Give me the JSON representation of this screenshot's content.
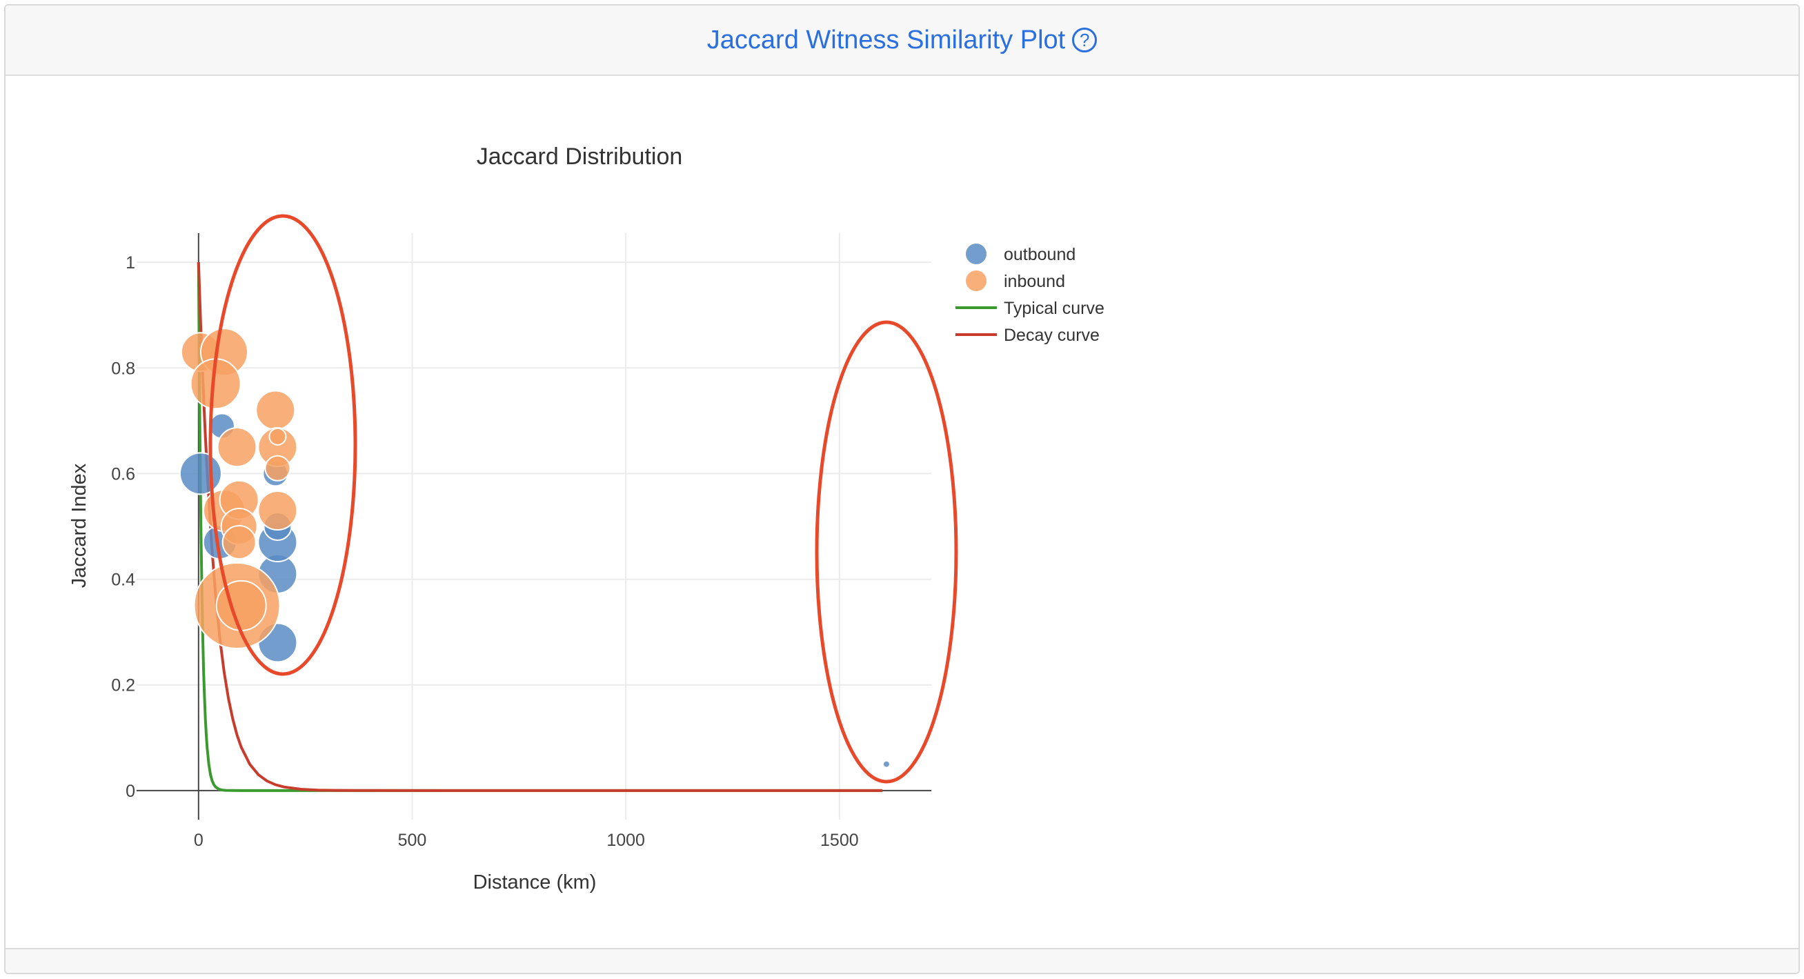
{
  "card": {
    "title": "Jaccard Witness Similarity Plot",
    "help_icon": "question-circle-icon",
    "accent_color": "#2a6fe0"
  },
  "chart_data": {
    "type": "scatter",
    "title": "Jaccard Distribution",
    "xlabel": "Distance (km)",
    "ylabel": "Jaccard Index",
    "xlim": [
      -145,
      1715
    ],
    "ylim": [
      -0.055,
      1.055
    ],
    "x_ticks": [
      0,
      500,
      1000,
      1500
    ],
    "y_ticks": [
      0,
      0.2,
      0.4,
      0.6,
      0.8,
      1
    ],
    "grid": true,
    "legend_position": "right",
    "legend": [
      "outbound",
      "inbound",
      "Typical curve",
      "Decay curve"
    ],
    "series": [
      {
        "name": "outbound",
        "kind": "markers",
        "color": "#5b8cc4",
        "points": [
          {
            "x": 5,
            "y": 0.6,
            "size": 30
          },
          {
            "x": 55,
            "y": 0.69,
            "size": 18
          },
          {
            "x": 50,
            "y": 0.47,
            "size": 24
          },
          {
            "x": 185,
            "y": 0.28,
            "size": 28
          },
          {
            "x": 185,
            "y": 0.41,
            "size": 28
          },
          {
            "x": 185,
            "y": 0.47,
            "size": 28
          },
          {
            "x": 185,
            "y": 0.5,
            "size": 20
          },
          {
            "x": 180,
            "y": 0.6,
            "size": 18
          },
          {
            "x": 1610,
            "y": 0.05,
            "size": 4
          }
        ]
      },
      {
        "name": "inbound",
        "kind": "markers",
        "color": "#f7a161",
        "points": [
          {
            "x": 5,
            "y": 0.83,
            "size": 28
          },
          {
            "x": 60,
            "y": 0.83,
            "size": 34
          },
          {
            "x": 40,
            "y": 0.77,
            "size": 36
          },
          {
            "x": 90,
            "y": 0.65,
            "size": 28
          },
          {
            "x": 60,
            "y": 0.53,
            "size": 30
          },
          {
            "x": 95,
            "y": 0.55,
            "size": 28
          },
          {
            "x": 95,
            "y": 0.5,
            "size": 26
          },
          {
            "x": 95,
            "y": 0.47,
            "size": 24
          },
          {
            "x": 90,
            "y": 0.35,
            "size": 62
          },
          {
            "x": 100,
            "y": 0.35,
            "size": 36
          },
          {
            "x": 180,
            "y": 0.72,
            "size": 28
          },
          {
            "x": 185,
            "y": 0.65,
            "size": 28
          },
          {
            "x": 185,
            "y": 0.67,
            "size": 12
          },
          {
            "x": 185,
            "y": 0.61,
            "size": 18
          },
          {
            "x": 185,
            "y": 0.53,
            "size": 28
          }
        ]
      },
      {
        "name": "Typical curve",
        "kind": "line",
        "color": "#3a9a2f",
        "decay_km": 8,
        "x": [
          0,
          2,
          4,
          6,
          8,
          10,
          12,
          14,
          16,
          18,
          20,
          24,
          28,
          32,
          36,
          40,
          48,
          56,
          64,
          80,
          100,
          150,
          200,
          400,
          800,
          1200,
          1600
        ]
      },
      {
        "name": "Decay curve",
        "kind": "line",
        "color": "#c83c2e",
        "decay_km": 40,
        "x": [
          0,
          5,
          10,
          15,
          20,
          30,
          40,
          50,
          60,
          70,
          80,
          90,
          100,
          120,
          140,
          160,
          180,
          200,
          240,
          280,
          320,
          400,
          600,
          900,
          1200,
          1600
        ]
      }
    ],
    "annotation_color": "#e8492a"
  }
}
